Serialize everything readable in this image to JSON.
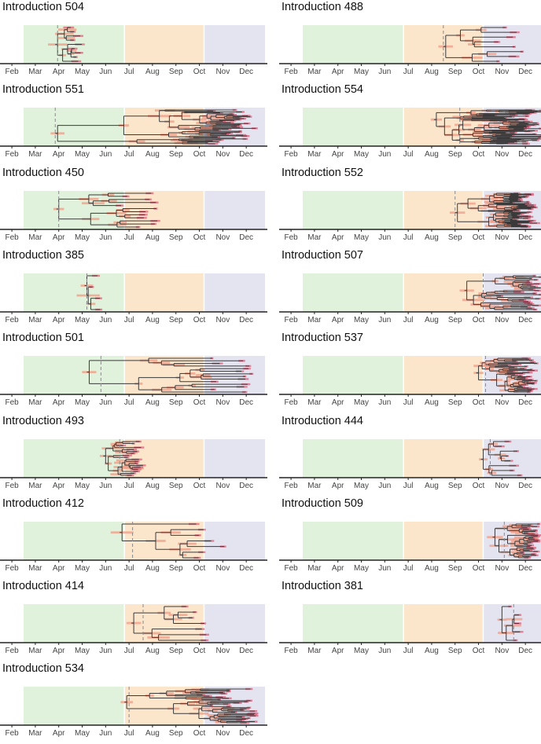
{
  "chart_data": {
    "type": "tree",
    "x_axis": {
      "ticks": [
        "Feb",
        "Mar",
        "Apr",
        "May",
        "Jun",
        "Jul",
        "Aug",
        "Sep",
        "Oct",
        "Nov",
        "Dec"
      ],
      "range_months": [
        1.5,
        11.8
      ]
    },
    "background_periods": [
      {
        "start_month": 1.5,
        "end_month": 5.8,
        "color": "#e1f2dc"
      },
      {
        "start_month": 5.8,
        "end_month": 9.2,
        "color": "#fbe6cc"
      },
      {
        "start_month": 9.2,
        "end_month": 11.8,
        "color": "#e4e4f1"
      }
    ],
    "colors": {
      "branch": "#3a3a3a",
      "interval": "#f0a08a",
      "tip_interval": "#e0607a",
      "dashed_line": "#8a8a8a",
      "axis": "#222222"
    },
    "panels": [
      {
        "title": "Introduction 504",
        "tmrca": 2.95,
        "first": 2.95,
        "last": 4.0,
        "tips": 9,
        "seed": 504
      },
      {
        "title": "Introduction 488",
        "tmrca": 7.5,
        "first": 7.6,
        "last": 10.95,
        "tips": 8,
        "seed": 488
      },
      {
        "title": "Introduction 551",
        "tmrca": 2.85,
        "first": 2.95,
        "last": 11.5,
        "tips": 36,
        "seed": 551
      },
      {
        "title": "Introduction 554",
        "tmrca": 8.2,
        "first": 7.2,
        "last": 11.95,
        "tips": 50,
        "seed": 554
      },
      {
        "title": "Introduction 450",
        "tmrca": 3.0,
        "first": 3.0,
        "last": 7.3,
        "tips": 12,
        "seed": 450
      },
      {
        "title": "Introduction 552",
        "tmrca": 8.0,
        "first": 8.1,
        "last": 11.5,
        "tips": 44,
        "seed": 552
      },
      {
        "title": "Introduction 385",
        "tmrca": 4.2,
        "first": 4.2,
        "last": 4.85,
        "tips": 4,
        "seed": 385
      },
      {
        "title": "Introduction 507",
        "tmrca": 9.2,
        "first": 8.5,
        "last": 11.7,
        "tips": 26,
        "seed": 507
      },
      {
        "title": "Introduction 501",
        "tmrca": 4.8,
        "first": 4.3,
        "last": 11.3,
        "tips": 14,
        "seed": 501
      },
      {
        "title": "Introduction 537",
        "tmrca": 9.3,
        "first": 9.0,
        "last": 11.5,
        "tips": 34,
        "seed": 537
      },
      {
        "title": "Introduction 493",
        "tmrca": 5.6,
        "first": 5.0,
        "last": 6.6,
        "tips": 18,
        "seed": 493
      },
      {
        "title": "Introduction 444",
        "tmrca": 9.5,
        "first": 9.2,
        "last": 11.0,
        "tips": 8,
        "seed": 444
      },
      {
        "title": "Introduction 412",
        "tmrca": 6.15,
        "first": 5.7,
        "last": 10.3,
        "tips": 7,
        "seed": 412
      },
      {
        "title": "Introduction 509",
        "tmrca": 10.1,
        "first": 9.7,
        "last": 11.6,
        "tips": 28,
        "seed": 509
      },
      {
        "title": "Introduction 414",
        "tmrca": 6.6,
        "first": 6.2,
        "last": 9.6,
        "tips": 7,
        "seed": 414
      },
      {
        "title": "Introduction 381",
        "tmrca": 10.5,
        "first": 10.0,
        "last": 10.9,
        "tips": 5,
        "seed": 381
      },
      {
        "title": "Introduction 534",
        "tmrca": 6.0,
        "first": 5.9,
        "last": 11.5,
        "tips": 30,
        "seed": 534
      }
    ]
  }
}
